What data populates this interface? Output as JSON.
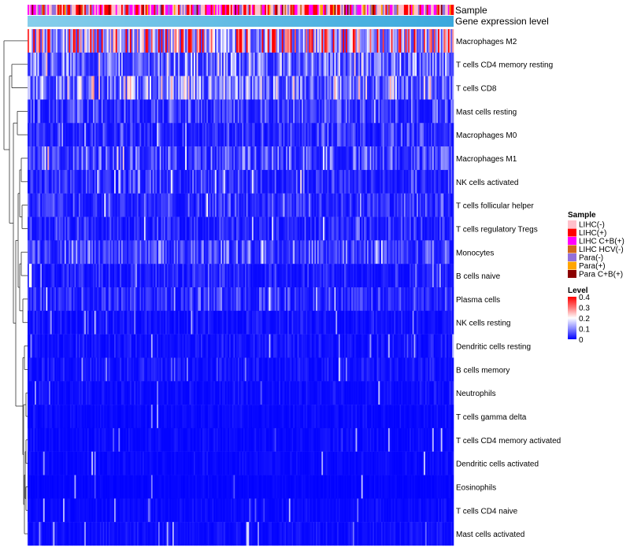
{
  "chart_data": {
    "type": "heatmap",
    "annotation_rows": [
      "Sample",
      "Gene expression level"
    ],
    "rows": [
      {
        "label": "Macrophages M2",
        "mean": 0.3
      },
      {
        "label": "T cells CD4 memory resting",
        "mean": 0.12
      },
      {
        "label": "T cells CD8",
        "mean": 0.13
      },
      {
        "label": "Mast cells resting",
        "mean": 0.06
      },
      {
        "label": "Macrophages M0",
        "mean": 0.05
      },
      {
        "label": "Macrophages M1",
        "mean": 0.07
      },
      {
        "label": "NK cells activated",
        "mean": 0.05
      },
      {
        "label": "T cells follicular helper",
        "mean": 0.05
      },
      {
        "label": "T cells regulatory  Tregs",
        "mean": 0.04
      },
      {
        "label": "Monocytes",
        "mean": 0.07
      },
      {
        "label": "B cells naive",
        "mean": 0.035
      },
      {
        "label": "Plasma cells",
        "mean": 0.045
      },
      {
        "label": "NK cells resting",
        "mean": 0.02
      },
      {
        "label": "Dendritic cells resting",
        "mean": 0.02
      },
      {
        "label": "B cells memory",
        "mean": 0.02
      },
      {
        "label": "Neutrophils",
        "mean": 0.015
      },
      {
        "label": "T cells gamma delta",
        "mean": 0.01
      },
      {
        "label": "T cells CD4 memory activated",
        "mean": 0.01
      },
      {
        "label": "Dendritic cells activated",
        "mean": 0.01
      },
      {
        "label": "Eosinophils",
        "mean": 0.005
      },
      {
        "label": "T cells CD4 naive",
        "mean": 0.01
      },
      {
        "label": "Mast cells activated",
        "mean": 0.015
      }
    ],
    "n_samples": 300,
    "color_scale": {
      "domain": [
        0,
        0.1,
        0.2,
        0.3,
        0.4
      ],
      "colors": [
        "#0000ff",
        "#8888ff",
        "#ffffff",
        "#ff7777",
        "#ff0000"
      ]
    },
    "legend": {
      "sample": {
        "title": "Sample",
        "entries": [
          {
            "label": "LIHC(-)",
            "color": "#ffc0cb"
          },
          {
            "label": "LIHC(+)",
            "color": "#ff0000"
          },
          {
            "label": "LIHC C+B(+)",
            "color": "#ff00ff"
          },
          {
            "label": "LIHC HCV(-)",
            "color": "#d2691e"
          },
          {
            "label": "Para(-)",
            "color": "#9370db"
          },
          {
            "label": "Para(+)",
            "color": "#ffa500"
          },
          {
            "label": "Para C+B(+)",
            "color": "#8b0000"
          }
        ]
      },
      "level": {
        "title": "Level",
        "ticks": [
          "0.4",
          "0.3",
          "0.2",
          "0.1",
          "0"
        ]
      }
    },
    "gene_expression_bar": {
      "from": "#87ceeb",
      "to": "#3aa8dd"
    }
  }
}
